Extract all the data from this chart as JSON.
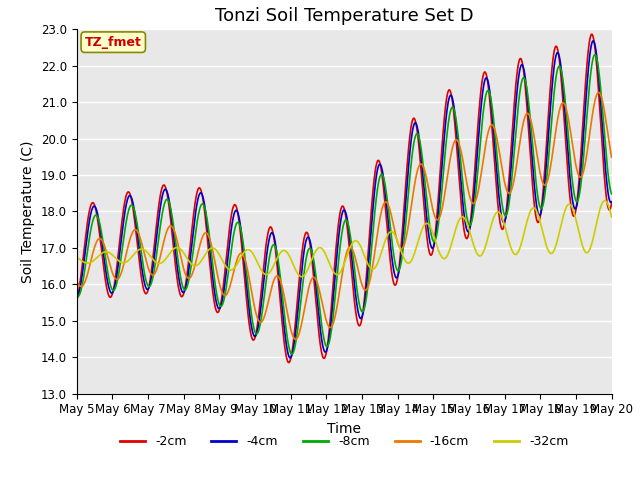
{
  "title": "Tonzi Soil Temperature Set D",
  "xlabel": "Time",
  "ylabel": "Soil Temperature (C)",
  "annotation": "TZ_fmet",
  "ylim": [
    13.0,
    23.0
  ],
  "yticks": [
    13.0,
    14.0,
    15.0,
    16.0,
    17.0,
    18.0,
    19.0,
    20.0,
    21.0,
    22.0,
    23.0
  ],
  "xtick_labels": [
    "May 5",
    "May 6",
    "May 7",
    "May 8",
    "May 9",
    "May 10",
    "May 11",
    "May 12",
    "May 13",
    "May 14",
    "May 15",
    "May 16",
    "May 17",
    "May 18",
    "May 19",
    "May 20"
  ],
  "series": {
    "-2cm": {
      "color": "#dd0000",
      "lw": 1.2
    },
    "-4cm": {
      "color": "#0000cc",
      "lw": 1.2
    },
    "-8cm": {
      "color": "#00aa00",
      "lw": 1.2
    },
    "-16cm": {
      "color": "#ee7700",
      "lw": 1.2
    },
    "-32cm": {
      "color": "#cccc00",
      "lw": 1.2
    }
  },
  "legend_order": [
    "-2cm",
    "-4cm",
    "-8cm",
    "-16cm",
    "-32cm"
  ],
  "background_color": "#e8e8e8",
  "title_fontsize": 13,
  "label_fontsize": 10,
  "tick_fontsize": 8.5
}
